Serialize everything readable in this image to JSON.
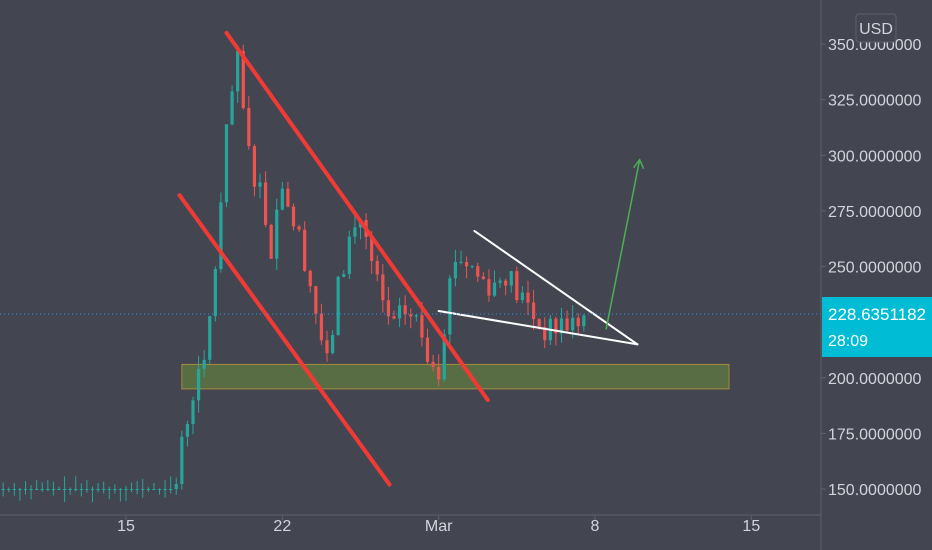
{
  "colors": {
    "background": "#434651",
    "axis_text": "#d1d4dc",
    "candle_up": "#26a69a",
    "candle_down": "#ef5350",
    "channel_lines": "#f23a35",
    "wedge_lines": "#ffffff",
    "breakout_arrow": "#4caf50",
    "support_zone": "#6b8e3a",
    "price_line": "#2196f3",
    "price_label": "#00bcd4"
  },
  "currency_button": {
    "label": "USD"
  },
  "price_label": {
    "price": "228.6351182",
    "countdown": "28:09"
  },
  "chart_data": {
    "type": "candlestick",
    "title": "",
    "xlabel": "",
    "ylabel": "",
    "ylim": [
      145,
      360
    ],
    "y_ticks": [
      {
        "value": 150,
        "label": "150.0000000"
      },
      {
        "value": 175,
        "label": "175.0000000"
      },
      {
        "value": 200,
        "label": "200.0000000"
      },
      {
        "value": 225,
        "label": "225.0000000"
      },
      {
        "value": 250,
        "label": "250.0000000"
      },
      {
        "value": 275,
        "label": "275.0000000"
      },
      {
        "value": 300,
        "label": "300.0000000"
      },
      {
        "value": 325,
        "label": "325.0000000"
      },
      {
        "value": 350,
        "label": "350.0000000"
      }
    ],
    "x_ticks": [
      {
        "day": 15,
        "label": "15"
      },
      {
        "day": 22,
        "label": "22"
      },
      {
        "day": 29,
        "label": "Mar"
      },
      {
        "day": 36,
        "label": "8"
      },
      {
        "day": 43,
        "label": "15"
      }
    ],
    "x_range_days": [
      9.5,
      47.5
    ],
    "current_price": 228.6351182,
    "support_zone": {
      "day_from": 17.5,
      "day_to": 42.0,
      "price_low": 195,
      "price_high": 206
    },
    "channel_upper": {
      "from": {
        "day": 19.5,
        "price": 355
      },
      "to": {
        "day": 31.2,
        "price": 190
      }
    },
    "channel_lower": {
      "from": {
        "day": 17.4,
        "price": 282
      },
      "to": {
        "day": 26.8,
        "price": 152
      }
    },
    "wedge_top": {
      "from": {
        "day": 30.6,
        "price": 266
      },
      "to": {
        "day": 37.9,
        "price": 215
      }
    },
    "wedge_bottom": {
      "from": {
        "day": 29.0,
        "price": 230
      },
      "to": {
        "day": 37.9,
        "price": 215
      }
    },
    "breakout_arrow": {
      "from": {
        "day": 36.5,
        "price": 222
      },
      "to": {
        "day": 38.0,
        "price": 298
      }
    }
  }
}
